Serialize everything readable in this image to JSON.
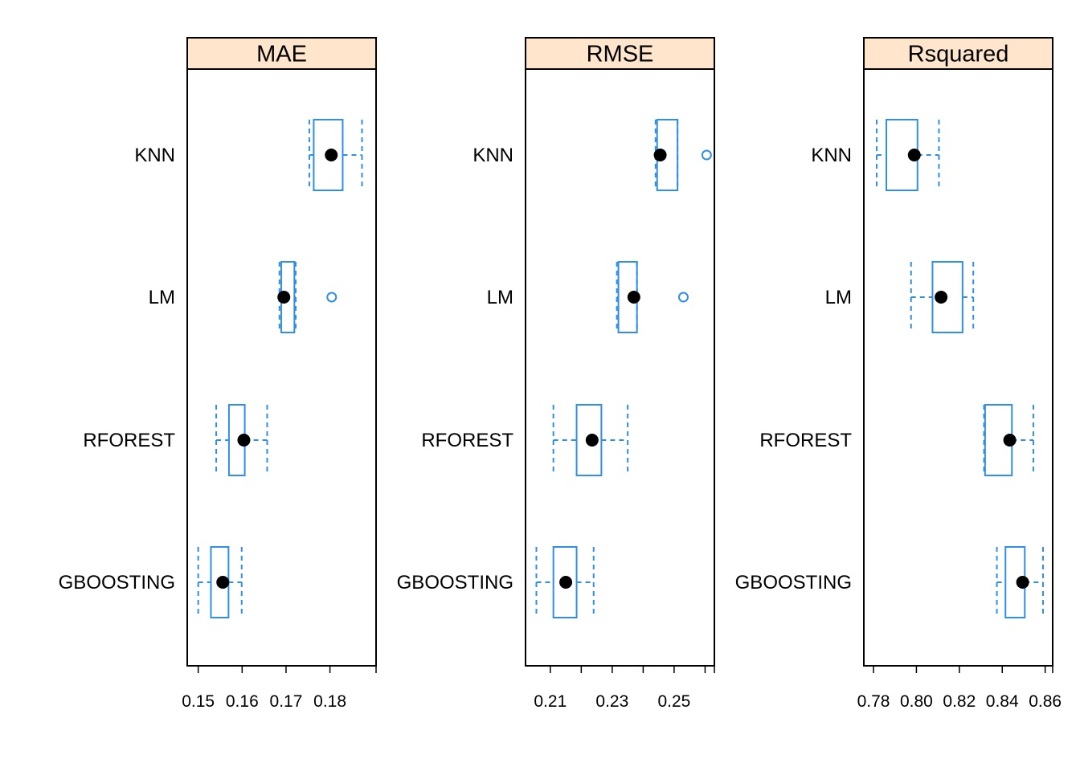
{
  "chart_data": [
    {
      "type": "box",
      "title": "MAE",
      "categories": [
        "KNN",
        "LM",
        "RFOREST",
        "GBOOSTING"
      ],
      "xlim": [
        0.1475,
        0.1905
      ],
      "ticks": [
        0.15,
        0.16,
        0.17,
        0.18
      ],
      "tick_labels": [
        "0.15",
        "0.16",
        "0.17",
        "0.18"
      ],
      "stats": [
        {
          "name": "KNN",
          "min": 0.1753,
          "q1": 0.1763,
          "median": 0.1803,
          "q3": 0.1829,
          "max": 0.1873,
          "outliers": []
        },
        {
          "name": "LM",
          "min": 0.1685,
          "q1": 0.1689,
          "median": 0.1695,
          "q3": 0.1719,
          "max": 0.1722,
          "outliers": [
            0.1804
          ]
        },
        {
          "name": "RFOREST",
          "min": 0.1541,
          "q1": 0.157,
          "median": 0.1604,
          "q3": 0.1606,
          "max": 0.1657,
          "outliers": []
        },
        {
          "name": "GBOOSTING",
          "min": 0.15,
          "q1": 0.1529,
          "median": 0.1556,
          "q3": 0.1569,
          "max": 0.1599,
          "outliers": []
        }
      ]
    },
    {
      "type": "box",
      "title": "RMSE",
      "categories": [
        "KNN",
        "LM",
        "RFOREST",
        "GBOOSTING"
      ],
      "xlim": [
        0.202,
        0.263
      ],
      "ticks": [
        0.21,
        0.22,
        0.23,
        0.24,
        0.25,
        0.26
      ],
      "tick_labels": [
        "0.21",
        "",
        "0.23",
        "",
        "0.25",
        ""
      ],
      "stats": [
        {
          "name": "KNN",
          "min": 0.244,
          "q1": 0.2445,
          "median": 0.2455,
          "q3": 0.2511,
          "max": 0.2511,
          "outliers": [
            0.2605
          ]
        },
        {
          "name": "LM",
          "min": 0.2315,
          "q1": 0.232,
          "median": 0.237,
          "q3": 0.238,
          "max": 0.238,
          "outliers": [
            0.253
          ]
        },
        {
          "name": "RFOREST",
          "min": 0.211,
          "q1": 0.2185,
          "median": 0.2235,
          "q3": 0.2265,
          "max": 0.235,
          "outliers": []
        },
        {
          "name": "GBOOSTING",
          "min": 0.2055,
          "q1": 0.211,
          "median": 0.215,
          "q3": 0.2185,
          "max": 0.224,
          "outliers": []
        }
      ]
    },
    {
      "type": "box",
      "title": "Rsquared",
      "categories": [
        "KNN",
        "LM",
        "RFOREST",
        "GBOOSTING"
      ],
      "xlim": [
        0.7755,
        0.8635
      ],
      "ticks": [
        0.78,
        0.8,
        0.82,
        0.84,
        0.86
      ],
      "tick_labels": [
        "0.78",
        "0.80",
        "0.82",
        "0.84",
        "0.86"
      ],
      "stats": [
        {
          "name": "KNN",
          "min": 0.7815,
          "q1": 0.786,
          "median": 0.799,
          "q3": 0.8005,
          "max": 0.8105,
          "outliers": []
        },
        {
          "name": "LM",
          "min": 0.7975,
          "q1": 0.8075,
          "median": 0.8115,
          "q3": 0.8215,
          "max": 0.8265,
          "outliers": []
        },
        {
          "name": "RFOREST",
          "min": 0.8315,
          "q1": 0.832,
          "median": 0.8435,
          "q3": 0.8445,
          "max": 0.8545,
          "outliers": []
        },
        {
          "name": "GBOOSTING",
          "min": 0.8375,
          "q1": 0.8415,
          "median": 0.8495,
          "q3": 0.8505,
          "max": 0.859,
          "outliers": []
        }
      ]
    }
  ]
}
